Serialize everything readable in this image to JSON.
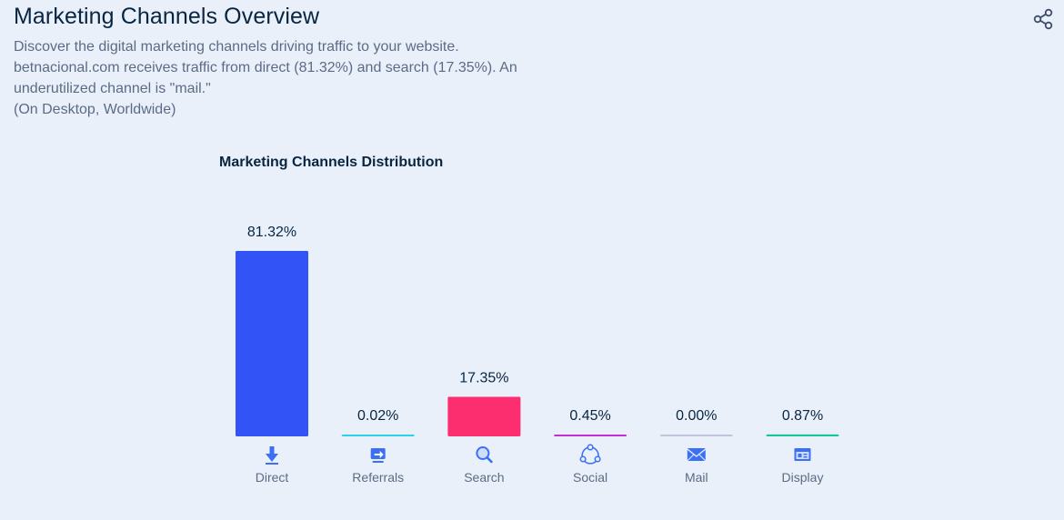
{
  "header": {
    "title": "Marketing Channels Overview",
    "share_icon": "share-icon",
    "description_lines": [
      "Discover the digital marketing channels driving traffic to your website.",
      "betnacional.com receives traffic from direct (81.32%) and search (17.35%). An",
      "underutilized channel is \"mail.\"",
      "(On Desktop, Worldwide)"
    ]
  },
  "chart_data": {
    "type": "bar",
    "title": "Marketing Channels Distribution",
    "categories": [
      "Direct",
      "Referrals",
      "Search",
      "Social",
      "Mail",
      "Display"
    ],
    "values": [
      81.32,
      0.02,
      17.35,
      0.45,
      0.0,
      0.87
    ],
    "value_labels": [
      "81.32%",
      "0.02%",
      "17.35%",
      "0.45%",
      "0.00%",
      "0.87%"
    ],
    "colors": [
      "#3253f5",
      "#2ed0e8",
      "#fc2e6f",
      "#c22fd7",
      "#bcc6d8",
      "#17c49a"
    ],
    "icons": [
      "direct-arrow-icon",
      "referrals-icon",
      "search-icon",
      "social-icon",
      "mail-icon",
      "display-icon"
    ],
    "icon_color": "#3b6ff5",
    "ylim": [
      0,
      81.32
    ],
    "xlabel": "",
    "ylabel": "",
    "grid": false
  }
}
